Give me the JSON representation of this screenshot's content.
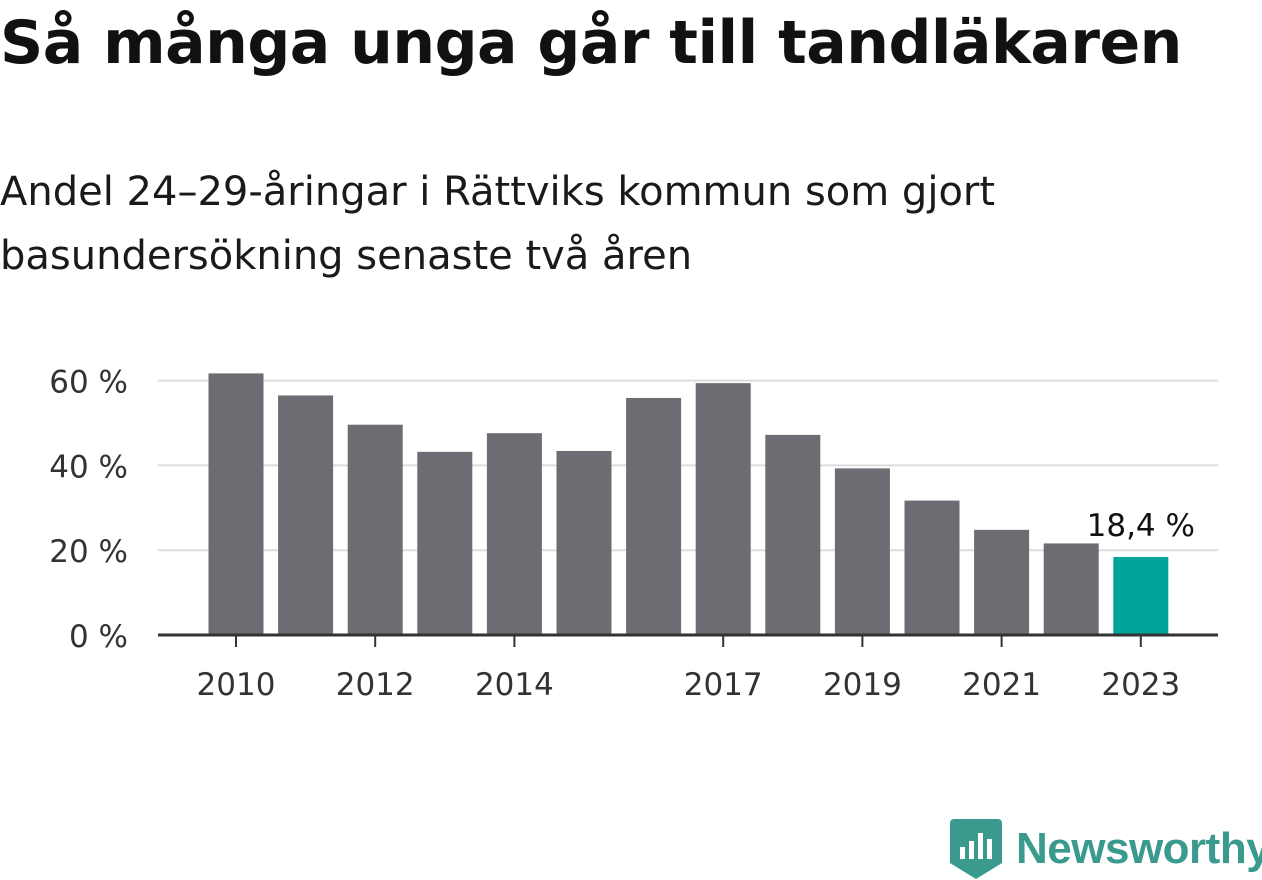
{
  "header": {
    "title": "Så många unga går till tandläkaren",
    "subtitle": "Andel 24–29-åringar i Rättviks kommun som gjort basundersökning senaste två åren"
  },
  "brand": {
    "name": "Newsworthy",
    "logo_icon": "bar-chart-badge-icon",
    "color": "#3a9a8e"
  },
  "chart_data": {
    "type": "bar",
    "x": [
      2010,
      2011,
      2012,
      2013,
      2014,
      2015,
      2016,
      2017,
      2018,
      2019,
      2020,
      2021,
      2022,
      2023
    ],
    "values": [
      61.7,
      56.5,
      49.6,
      43.2,
      47.6,
      43.4,
      55.9,
      59.4,
      47.2,
      39.3,
      31.7,
      24.8,
      21.6,
      18.4
    ],
    "tick_labels": [
      "2010",
      "2012",
      "2014",
      "2017",
      "2019",
      "2021",
      "2023"
    ],
    "y_ticks": [
      0,
      20,
      40,
      60
    ],
    "y_tick_labels": [
      "0 %",
      "20 %",
      "40 %",
      "60 %"
    ],
    "ylim": [
      0,
      62
    ],
    "highlight": {
      "index": 13,
      "label": "18,4 %"
    },
    "colors": {
      "bar": "#6d6c73",
      "highlight": "#00a499",
      "grid": "#dddddd",
      "axis": "#333333"
    },
    "grid": true
  }
}
